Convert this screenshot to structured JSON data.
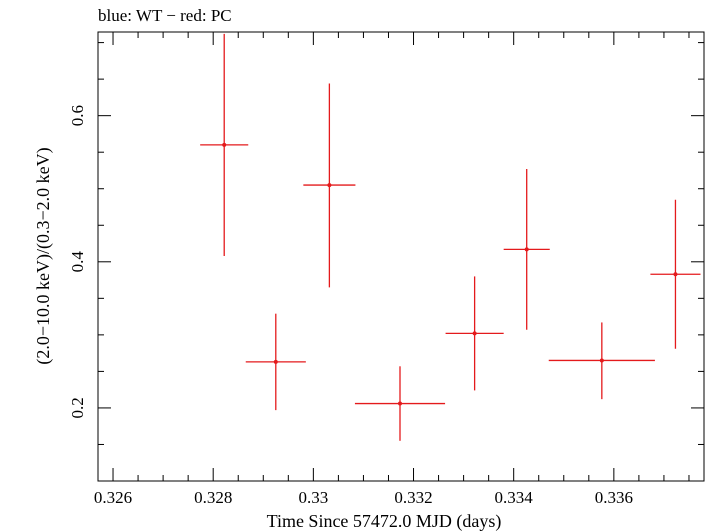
{
  "chart_data": {
    "type": "scatter",
    "title": "blue: WT − red: PC",
    "xlabel": "Time Since 57472.0 MJD (days)",
    "ylabel": "(2.0−10.0 keV)/(0.3−2.0 keV)",
    "xlim": [
      0.3257,
      0.3378
    ],
    "ylim": [
      0.1,
      0.7145
    ],
    "x_ticks": [
      {
        "value": 0.326,
        "label": "0.326"
      },
      {
        "value": 0.328,
        "label": "0.328"
      },
      {
        "value": 0.33,
        "label": "0.33"
      },
      {
        "value": 0.332,
        "label": "0.332"
      },
      {
        "value": 0.334,
        "label": "0.334"
      },
      {
        "value": 0.336,
        "label": "0.336"
      }
    ],
    "y_ticks": [
      {
        "value": 0.2,
        "label": "0.2"
      },
      {
        "value": 0.4,
        "label": "0.4"
      },
      {
        "value": 0.6,
        "label": "0.6"
      }
    ],
    "grid": false,
    "series": [
      {
        "name": "PC",
        "color": "#e41a1c",
        "points": [
          {
            "x": 0.33723,
            "y": 0.383,
            "xerr": 0.0005,
            "ylo": 0.281,
            "yhi": 0.485
          },
          {
            "x": 0.32822,
            "y": 0.56,
            "xerr": 0.00048,
            "ylo": 0.408,
            "yhi": 0.712
          },
          {
            "x": 0.32925,
            "y": 0.263,
            "xerr": 0.0006,
            "ylo": 0.197,
            "yhi": 0.329
          },
          {
            "x": 0.33032,
            "y": 0.505,
            "xerr": 0.00052,
            "ylo": 0.365,
            "yhi": 0.644
          },
          {
            "x": 0.33173,
            "y": 0.206,
            "xerr": 0.0009,
            "ylo": 0.155,
            "yhi": 0.257
          },
          {
            "x": 0.33322,
            "y": 0.302,
            "xerr": 0.00058,
            "ylo": 0.224,
            "yhi": 0.38
          },
          {
            "x": 0.33426,
            "y": 0.417,
            "xerr": 0.00046,
            "ylo": 0.307,
            "yhi": 0.527
          },
          {
            "x": 0.33576,
            "y": 0.265,
            "xerr": 0.00106,
            "ylo": 0.212,
            "yhi": 0.317
          }
        ]
      }
    ]
  }
}
